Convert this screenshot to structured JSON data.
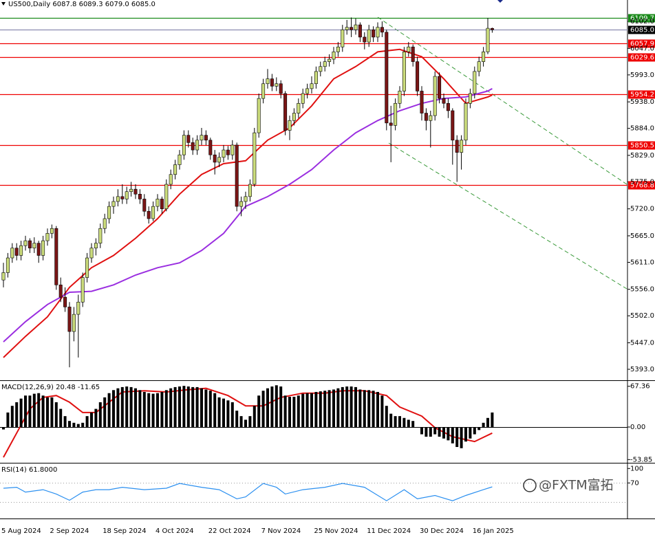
{
  "chart_data": [
    {
      "type": "candlestick",
      "title": "US500,Daily  6087.8 6089.3 6079.0 6085.0",
      "categories": [
        "5 Aug 2024",
        null,
        null,
        null,
        null,
        null,
        null,
        null,
        null,
        null,
        null,
        "2 Sep 2024",
        null,
        null,
        null,
        null,
        null,
        null,
        null,
        null,
        null,
        null,
        null,
        "18 Sep 2024",
        null,
        null,
        null,
        null,
        null,
        null,
        null,
        null,
        null,
        null,
        null,
        "4 Oct 2024",
        null,
        null,
        null,
        null,
        null,
        null,
        null,
        null,
        null,
        null,
        null,
        "22 Oct 2024",
        null,
        null,
        null,
        null,
        null,
        null,
        null,
        null,
        null,
        null,
        null,
        "7 Nov 2024",
        null,
        null,
        null,
        null,
        null,
        null,
        null,
        null,
        null,
        null,
        null,
        "25 Nov 2024",
        null,
        null,
        null,
        null,
        null,
        null,
        null,
        null,
        null,
        null,
        null,
        "11 Dec 2024",
        null,
        null,
        null,
        null,
        null,
        null,
        null,
        null,
        null,
        null,
        null,
        "30 Dec 2024",
        null,
        null,
        null,
        null,
        null,
        null,
        null,
        null,
        null,
        null,
        null,
        "16 Jan 2025",
        null,
        null,
        null,
        null
      ],
      "ohlc": [
        [
          5575,
          5610,
          5560,
          5590
        ],
        [
          5590,
          5630,
          5580,
          5620
        ],
        [
          5620,
          5650,
          5610,
          5640
        ],
        [
          5640,
          5650,
          5615,
          5625
        ],
        [
          5625,
          5655,
          5615,
          5645
        ],
        [
          5645,
          5665,
          5635,
          5655
        ],
        [
          5655,
          5660,
          5630,
          5640
        ],
        [
          5640,
          5662,
          5630,
          5650
        ],
        [
          5650,
          5655,
          5610,
          5625
        ],
        [
          5625,
          5665,
          5615,
          5655
        ],
        [
          5655,
          5680,
          5645,
          5670
        ],
        [
          5670,
          5688,
          5660,
          5680
        ],
        [
          5680,
          5685,
          5555,
          5565
        ],
        [
          5565,
          5580,
          5530,
          5540
        ],
        [
          5540,
          5560,
          5510,
          5520
        ],
        [
          5520,
          5530,
          5397,
          5470
        ],
        [
          5470,
          5520,
          5450,
          5505
        ],
        [
          5505,
          5545,
          5417,
          5530
        ],
        [
          5530,
          5590,
          5520,
          5580
        ],
        [
          5580,
          5630,
          5570,
          5620
        ],
        [
          5620,
          5650,
          5610,
          5640
        ],
        [
          5640,
          5660,
          5625,
          5650
        ],
        [
          5650,
          5690,
          5640,
          5680
        ],
        [
          5680,
          5710,
          5670,
          5700
        ],
        [
          5700,
          5735,
          5690,
          5725
        ],
        [
          5725,
          5745,
          5710,
          5735
        ],
        [
          5735,
          5760,
          5725,
          5745
        ],
        [
          5745,
          5770,
          5730,
          5740
        ],
        [
          5740,
          5765,
          5730,
          5755
        ],
        [
          5755,
          5775,
          5745,
          5760
        ],
        [
          5760,
          5770,
          5740,
          5750
        ],
        [
          5750,
          5760,
          5730,
          5740
        ],
        [
          5740,
          5750,
          5705,
          5715
        ],
        [
          5715,
          5725,
          5690,
          5700
        ],
        [
          5700,
          5735,
          5695,
          5725
        ],
        [
          5725,
          5750,
          5715,
          5740
        ],
        [
          5740,
          5745,
          5710,
          5720
        ],
        [
          5720,
          5780,
          5715,
          5770
        ],
        [
          5770,
          5800,
          5760,
          5790
        ],
        [
          5790,
          5820,
          5780,
          5810
        ],
        [
          5810,
          5840,
          5800,
          5830
        ],
        [
          5830,
          5880,
          5820,
          5870
        ],
        [
          5870,
          5880,
          5845,
          5855
        ],
        [
          5855,
          5865,
          5830,
          5840
        ],
        [
          5840,
          5870,
          5830,
          5860
        ],
        [
          5860,
          5885,
          5850,
          5870
        ],
        [
          5870,
          5880,
          5850,
          5860
        ],
        [
          5860,
          5865,
          5820,
          5830
        ],
        [
          5830,
          5840,
          5790,
          5815
        ],
        [
          5815,
          5835,
          5805,
          5825
        ],
        [
          5825,
          5850,
          5815,
          5840
        ],
        [
          5840,
          5848,
          5820,
          5830
        ],
        [
          5830,
          5860,
          5820,
          5850
        ],
        [
          5850,
          5855,
          5715,
          5725
        ],
        [
          5725,
          5745,
          5705,
          5735
        ],
        [
          5735,
          5755,
          5720,
          5745
        ],
        [
          5745,
          5780,
          5735,
          5770
        ],
        [
          5770,
          5885,
          5765,
          5875
        ],
        [
          5875,
          5955,
          5865,
          5945
        ],
        [
          5945,
          5985,
          5935,
          5975
        ],
        [
          5975,
          6005,
          5965,
          5985
        ],
        [
          5985,
          5995,
          5960,
          5970
        ],
        [
          5970,
          5988,
          5960,
          5975
        ],
        [
          5975,
          5982,
          5945,
          5955
        ],
        [
          5955,
          5960,
          5870,
          5880
        ],
        [
          5880,
          5910,
          5860,
          5900
        ],
        [
          5900,
          5925,
          5890,
          5915
        ],
        [
          5915,
          5945,
          5905,
          5935
        ],
        [
          5935,
          5965,
          5925,
          5955
        ],
        [
          5955,
          5975,
          5945,
          5965
        ],
        [
          5965,
          5990,
          5955,
          5975
        ],
        [
          5975,
          6010,
          5965,
          6000
        ],
        [
          6000,
          6020,
          5990,
          6010
        ],
        [
          6010,
          6030,
          6000,
          6020
        ],
        [
          6020,
          6035,
          6010,
          6025
        ],
        [
          6025,
          6050,
          6015,
          6040
        ],
        [
          6040,
          6060,
          6030,
          6050
        ],
        [
          6050,
          6095,
          6040,
          6085
        ],
        [
          6085,
          6105,
          6075,
          6090
        ],
        [
          6090,
          6110,
          6070,
          6085
        ],
        [
          6085,
          6108,
          6075,
          6095
        ],
        [
          6095,
          6100,
          6060,
          6070
        ],
        [
          6070,
          6080,
          6045,
          6060
        ],
        [
          6060,
          6095,
          6050,
          6085
        ],
        [
          6085,
          6092,
          6060,
          6070
        ],
        [
          6070,
          6100,
          6060,
          6090
        ],
        [
          6090,
          6102,
          6070,
          6080
        ],
        [
          6080,
          6085,
          5880,
          5895
        ],
        [
          5895,
          5930,
          5815,
          5890
        ],
        [
          5890,
          5945,
          5880,
          5935
        ],
        [
          5935,
          5970,
          5925,
          5960
        ],
        [
          5960,
          6050,
          5950,
          6040
        ],
        [
          6040,
          6060,
          6030,
          6050
        ],
        [
          6050,
          6055,
          6010,
          6020
        ],
        [
          6020,
          6030,
          5950,
          5960
        ],
        [
          5960,
          5970,
          5900,
          5915
        ],
        [
          5915,
          5925,
          5880,
          5900
        ],
        [
          5900,
          5920,
          5845,
          5910
        ],
        [
          5910,
          6000,
          5900,
          5990
        ],
        [
          5990,
          5998,
          5935,
          5945
        ],
        [
          5945,
          5955,
          5925,
          5935
        ],
        [
          5935,
          5945,
          5905,
          5920
        ],
        [
          5920,
          5925,
          5810,
          5860
        ],
        [
          5860,
          5870,
          5775,
          5835
        ],
        [
          5835,
          5870,
          5800,
          5860
        ],
        [
          5860,
          5945,
          5850,
          5935
        ],
        [
          5935,
          5965,
          5925,
          5955
        ],
        [
          5955,
          6010,
          5945,
          6000
        ],
        [
          6000,
          6030,
          5990,
          6020
        ],
        [
          6020,
          6050,
          6010,
          6040
        ],
        [
          6040,
          6109,
          6035,
          6088
        ],
        [
          6087.8,
          6089.3,
          6079.0,
          6085.0
        ]
      ],
      "up_color": "#cbdc7c",
      "down_color": "#7a1616",
      "ylim": [
        5372,
        6126
      ],
      "yticks": [
        {
          "value": 6102.0,
          "label": "6102.0"
        },
        {
          "value": 6047.0,
          "label": "6047.0"
        },
        {
          "value": 5993.0,
          "label": "5993.0"
        },
        {
          "value": 5938.0,
          "label": "5938.0"
        },
        {
          "value": 5884.0,
          "label": "5884.0"
        },
        {
          "value": 5829.0,
          "label": "5829.0"
        },
        {
          "value": 5775.0,
          "label": "5775.0"
        },
        {
          "value": 5720.0,
          "label": "5720.0"
        },
        {
          "value": 5665.0,
          "label": "5665.0"
        },
        {
          "value": 5611.0,
          "label": "5611.0"
        },
        {
          "value": 5556.0,
          "label": "5556.0"
        },
        {
          "value": 5502.0,
          "label": "5502.0"
        },
        {
          "value": 5447.0,
          "label": "5447.0"
        },
        {
          "value": 5393.0,
          "label": "5393.0"
        }
      ],
      "levels": [
        {
          "value": 6109.7,
          "label": "6109.7",
          "color": "#1a8a1a",
          "label_bg": "#1a8a1a"
        },
        {
          "value": 6085.0,
          "label": "6085.0",
          "color": "#8a8ab0",
          "label_bg": "#000000"
        },
        {
          "value": 6057.9,
          "label": "6057.9",
          "color": "#ee0000",
          "label_bg": "#ee0000"
        },
        {
          "value": 6029.6,
          "label": "6029.6",
          "color": "#ee0000",
          "label_bg": "#ee0000"
        },
        {
          "value": 5954.2,
          "label": "5954.2",
          "color": "#ee0000",
          "label_bg": "#ee0000"
        },
        {
          "value": 5850.5,
          "label": "5850.5",
          "color": "#ee0000",
          "label_bg": "#ee0000"
        },
        {
          "value": 5768.8,
          "label": "5768.8",
          "color": "#ee0000",
          "label_bg": "#ee0000"
        }
      ],
      "series": [
        {
          "color": "#e01010",
          "x": [
            0,
            5,
            10,
            15,
            20,
            25,
            30,
            35,
            40,
            45,
            50,
            55,
            60,
            65,
            70,
            75,
            80,
            85,
            90,
            95,
            100,
            105,
            110,
            111
          ],
          "values": [
            5417,
            5460,
            5500,
            5560,
            5600,
            5625,
            5660,
            5700,
            5750,
            5790,
            5812,
            5818,
            5860,
            5885,
            5930,
            5985,
            6010,
            6040,
            6045,
            6030,
            5985,
            5935,
            5948,
            5952
          ]
        },
        {
          "color": "#9a2ee0",
          "x": [
            0,
            5,
            10,
            15,
            20,
            25,
            30,
            35,
            40,
            45,
            50,
            55,
            60,
            65,
            70,
            75,
            80,
            85,
            90,
            95,
            100,
            105,
            110,
            111
          ],
          "values": [
            5449,
            5490,
            5525,
            5550,
            5552,
            5565,
            5585,
            5600,
            5610,
            5635,
            5670,
            5725,
            5745,
            5770,
            5800,
            5840,
            5875,
            5900,
            5920,
            5935,
            5945,
            5948,
            5960,
            5965
          ]
        }
      ]
    },
    {
      "type": "macd",
      "title": "MACD(12,26,9) 20.48 -11.65",
      "values": [
        -4,
        24,
        35,
        41,
        47,
        52,
        52,
        55,
        56,
        52,
        49,
        49,
        41,
        30,
        18,
        10,
        7,
        5,
        7,
        18,
        24,
        30,
        41,
        49,
        56,
        61,
        64,
        66,
        67,
        66,
        64,
        61,
        58,
        56,
        55,
        56,
        58,
        61,
        64,
        66,
        67,
        68,
        67,
        66,
        66,
        64,
        62,
        60,
        56,
        49,
        47,
        44,
        41,
        27,
        18,
        12,
        18,
        35,
        52,
        60,
        64,
        67,
        69,
        67,
        52,
        50,
        50,
        52,
        55,
        56,
        56,
        58,
        59,
        60,
        61,
        62,
        64,
        66,
        67,
        67,
        66,
        62,
        61,
        61,
        60,
        58,
        52,
        35,
        22,
        18,
        18,
        15,
        12,
        10,
        -1,
        -12,
        -16,
        -16,
        -12,
        -16,
        -19,
        -22,
        -27,
        -33,
        -35,
        -24,
        -19,
        -12,
        -5,
        7,
        15,
        24
      ],
      "color": "#000000",
      "series": [
        {
          "color": "#e01010",
          "x": [
            0,
            3,
            6,
            9,
            12,
            15,
            18,
            21,
            24,
            27,
            32,
            37,
            41,
            46,
            51,
            55,
            59,
            63,
            68,
            73,
            77,
            82,
            87,
            90,
            95,
            98,
            102,
            107,
            111
          ],
          "values": [
            -50,
            -10,
            30,
            49,
            52,
            41,
            24,
            24,
            41,
            58,
            60,
            58,
            61,
            64,
            52,
            35,
            35,
            49,
            56,
            56,
            60,
            60,
            52,
            33,
            18,
            -1,
            -16,
            -24,
            -10
          ]
        }
      ],
      "ylim": [
        -58,
        75
      ],
      "yticks": [
        67.36,
        {
          "value": 0,
          "label": "0.00"
        },
        -53.85
      ],
      "levels": [
        0
      ]
    },
    {
      "type": "rsi",
      "title": "RSI(14) 61.8000",
      "series": [
        {
          "color": "#2a8ff0",
          "x": [
            0,
            3,
            5,
            9,
            12,
            15,
            18,
            21,
            24,
            27,
            32,
            37,
            40,
            45,
            49,
            53,
            55,
            59,
            62,
            64,
            68,
            73,
            77,
            82,
            87,
            91,
            94,
            98,
            102,
            105,
            109,
            111
          ],
          "values": [
            59,
            61,
            51,
            56,
            47,
            34,
            51,
            56,
            56,
            61,
            56,
            59,
            69,
            61,
            56,
            37,
            41,
            69,
            61,
            47,
            56,
            61,
            69,
            61,
            33,
            56,
            37,
            44,
            33,
            44,
            56,
            61.8
          ]
        }
      ],
      "ylim": [
        -1,
        109
      ],
      "yticks": [
        100,
        70
      ],
      "levels": [
        70,
        30
      ]
    }
  ],
  "watermark": "@FXTM富拓"
}
